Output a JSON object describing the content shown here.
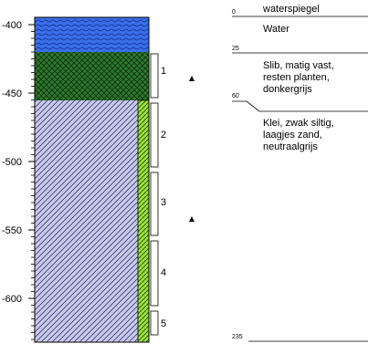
{
  "depth_axis": {
    "ticks": [
      "-400",
      "-450",
      "-500",
      "-550",
      "-600"
    ]
  },
  "sample_numbers": [
    "1",
    "2",
    "3",
    "4",
    "5"
  ],
  "depth_markers": [
    "0",
    "25",
    "60",
    "235"
  ],
  "layers": {
    "water_table_label": "waterspiegel",
    "water": "Water",
    "silt_lines": [
      "Slib, matig vast,",
      "resten planten,",
      "donkergrijs"
    ],
    "clay_lines": [
      "Klei, zwak siltig,",
      "laagjes zand,",
      "neutraalgrijs"
    ]
  },
  "colors": {
    "water": "#3a6fe8",
    "silt": "#2d7a2d",
    "clay": "#c8c8f0",
    "sample_strip": "#9be23c"
  }
}
